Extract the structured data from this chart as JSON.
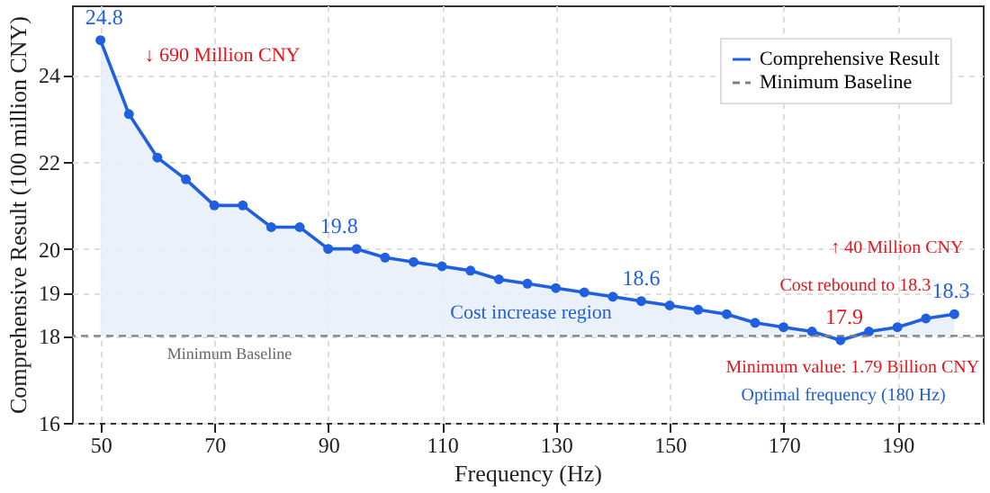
{
  "chart_data": {
    "type": "line",
    "xlabel": "Frequency (Hz)",
    "ylabel": "Comprehensive Result (100 million CNY)",
    "x": [
      50,
      55,
      60,
      65,
      70,
      75,
      80,
      85,
      90,
      95,
      100,
      105,
      110,
      115,
      120,
      125,
      130,
      135,
      140,
      145,
      150,
      155,
      160,
      165,
      170,
      175,
      180,
      185,
      190,
      195,
      200
    ],
    "series": [
      {
        "name": "Comprehensive Result",
        "color": "#1f5fe0",
        "values": [
          24.8,
          23.1,
          22.1,
          21.6,
          21.0,
          21.0,
          20.5,
          20.5,
          20.0,
          20.0,
          19.8,
          19.7,
          19.6,
          19.5,
          19.3,
          19.2,
          19.1,
          19.0,
          18.9,
          18.8,
          18.7,
          18.6,
          18.5,
          18.3,
          18.2,
          18.1,
          17.9,
          18.1,
          18.2,
          18.4,
          18.5
        ]
      }
    ],
    "ref_lines": [
      {
        "axis": "y",
        "value": 18,
        "label": "Minimum Baseline",
        "color": "#808080",
        "line_style": "dashed"
      }
    ],
    "annotations": [
      {
        "text": "24.8",
        "x": 50,
        "y": 24.8
      },
      "↓ 690 Million CNY",
      {
        "text": "19.8",
        "x": 90,
        "y": 20.0
      },
      {
        "text": "18.6",
        "x": 145,
        "y": 18.8
      },
      "Cost increase region",
      "Minimum Baseline",
      {
        "text": "17.9",
        "x": 180,
        "y": 17.9
      },
      {
        "text": "18.3",
        "x": 200,
        "y": 18.5
      },
      "Cost rebound to 18.3",
      "↑ 40 Million CNY",
      "Minimum value: 1.79 Billion CNY",
      "Optimal frequency (180 Hz)"
    ],
    "xlim": [
      45,
      205
    ],
    "xticks": [
      50,
      70,
      90,
      110,
      130,
      150,
      170,
      190
    ],
    "ylim": [
      16,
      25.6
    ],
    "yticks": [
      16,
      18,
      19,
      20,
      22,
      24
    ],
    "grid": true,
    "legend": "top right",
    "marker": "circle",
    "line_style": "solid"
  }
}
